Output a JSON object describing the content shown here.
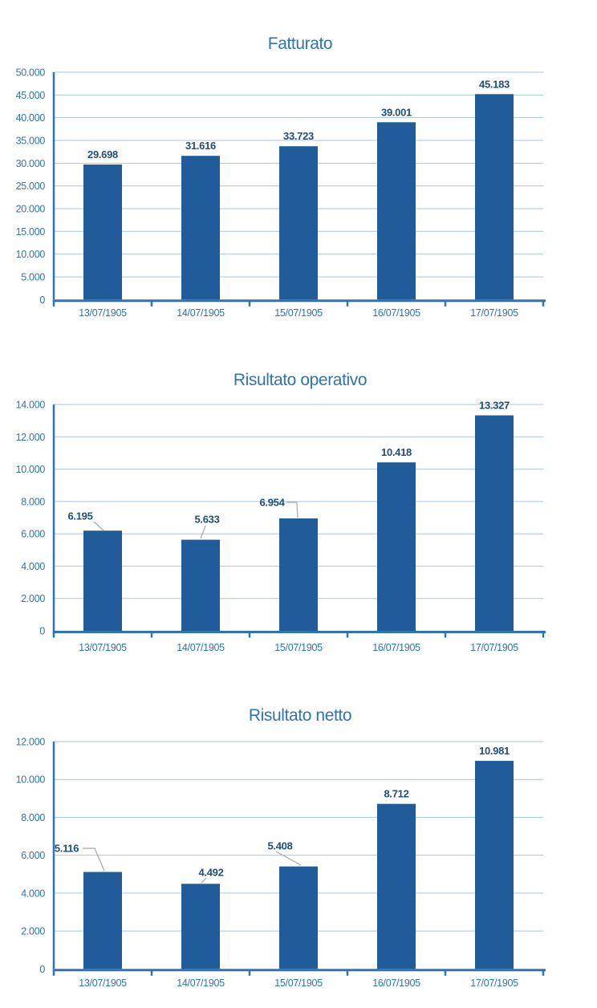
{
  "colors": {
    "background": "#ffffff",
    "bar": "#1F5C99",
    "title": "#2E74B5",
    "tick_label": "#2E74B5",
    "data_label": "#1F4E79",
    "axis": "#2E74B5",
    "gridline": "#A8C4DC",
    "leader": "#A6A6A6"
  },
  "chart_data": [
    {
      "type": "bar",
      "title": "Fatturato",
      "categories": [
        "13/07/1905",
        "14/07/1905",
        "15/07/1905",
        "16/07/1905",
        "17/07/1905"
      ],
      "values": [
        29698,
        31616,
        33723,
        39001,
        45183
      ],
      "value_labels": [
        "29.698",
        "31.616",
        "33.723",
        "39.001",
        "45.183"
      ],
      "xlabel": "",
      "ylabel": "",
      "ylim": [
        0,
        50000
      ],
      "ytick_step": 5000,
      "ytick_labels": [
        "0",
        "5.000",
        "10.000",
        "15.000",
        "20.000",
        "25.000",
        "30.000",
        "35.000",
        "40.000",
        "45.000",
        "50.000"
      ],
      "grid": true,
      "legend": "none"
    },
    {
      "type": "bar",
      "title": "Risultato operativo",
      "categories": [
        "13/07/1905",
        "14/07/1905",
        "15/07/1905",
        "16/07/1905",
        "17/07/1905"
      ],
      "values": [
        6195,
        5633,
        6954,
        10418,
        13327
      ],
      "value_labels": [
        "6.195",
        "5.633",
        "6.954",
        "10.418",
        "13.327"
      ],
      "xlabel": "",
      "ylabel": "",
      "ylim": [
        0,
        14000
      ],
      "ytick_step": 2000,
      "ytick_labels": [
        "0",
        "2.000",
        "4.000",
        "6.000",
        "8.000",
        "10.000",
        "12.000",
        "14.000"
      ],
      "grid": true,
      "legend": "none"
    },
    {
      "type": "bar",
      "title": "Risultato netto",
      "categories": [
        "13/07/1905",
        "14/07/1905",
        "15/07/1905",
        "16/07/1905",
        "17/07/1905"
      ],
      "values": [
        5116,
        4492,
        5408,
        8712,
        10981
      ],
      "value_labels": [
        "5.116",
        "4.492",
        "5.408",
        "8.712",
        "10.981"
      ],
      "xlabel": "",
      "ylabel": "",
      "ylim": [
        0,
        12000
      ],
      "ytick_step": 2000,
      "ytick_labels": [
        "0",
        "2.000",
        "4.000",
        "6.000",
        "8.000",
        "10.000",
        "12.000"
      ],
      "grid": true,
      "legend": "none"
    }
  ]
}
